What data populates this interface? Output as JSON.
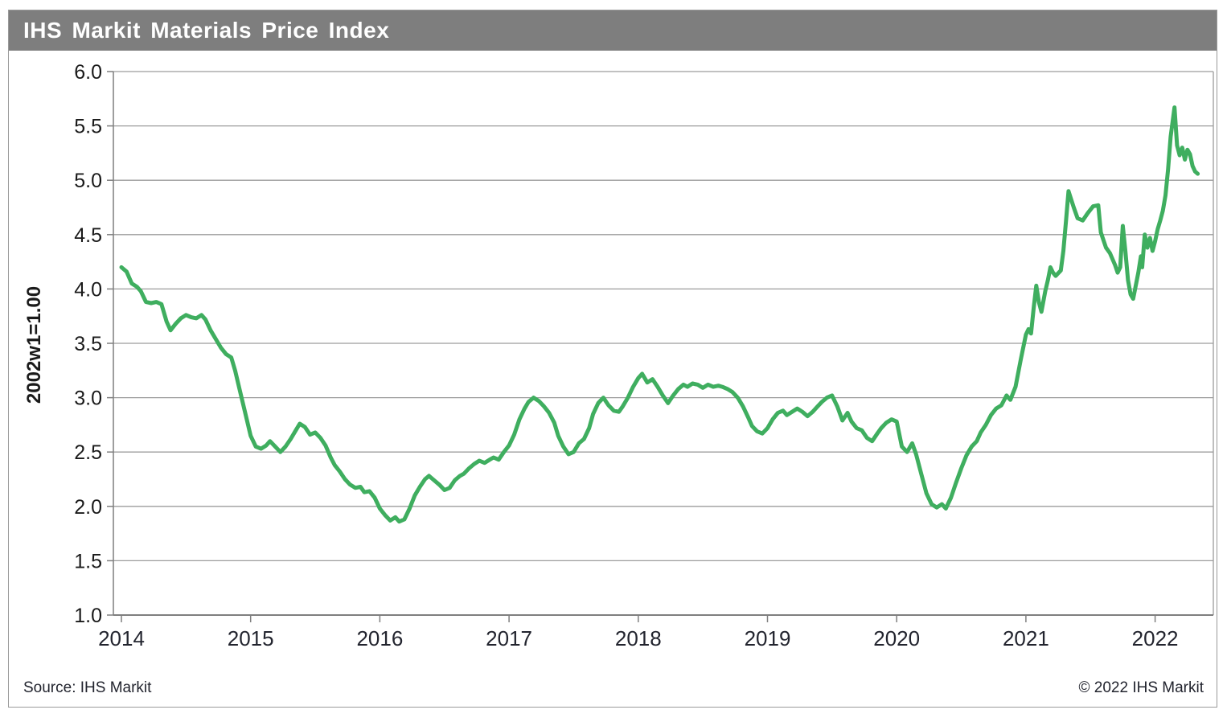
{
  "header": {
    "title": "IHS Markit Materials Price Index",
    "bar_color": "#7e7e7e",
    "title_color": "#ffffff"
  },
  "footer": {
    "source": "Source:  IHS Markit",
    "copyright": "© 2022  IHS Markit"
  },
  "chart_data": {
    "type": "line",
    "title": "IHS Markit Materials Price Index",
    "xlabel": "",
    "ylabel": "2002w1=1.00",
    "legend": [],
    "grid": "horizontal, every 0.5 units",
    "xlim": [
      2014,
      2022.45
    ],
    "ylim": [
      1.0,
      6.0
    ],
    "xticks": [
      "2014",
      "2015",
      "2016",
      "2017",
      "2018",
      "2019",
      "2020",
      "2021",
      "2022"
    ],
    "yticks": [
      "6.0",
      "5.5",
      "5.0",
      "4.5",
      "4.0",
      "3.5",
      "3.0",
      "2.5",
      "2.0",
      "1.5",
      "1.0"
    ],
    "ytick_values": [
      6.0,
      5.5,
      5.0,
      4.5,
      4.0,
      3.5,
      3.0,
      2.5,
      2.0,
      1.5,
      1.0
    ],
    "xtick_values": [
      2014,
      2015,
      2016,
      2017,
      2018,
      2019,
      2020,
      2021,
      2022
    ],
    "line_color": "#3fae5f",
    "grid_color": "#9c9c9c",
    "axis_color": "#7f7f7f",
    "series_name": "IHS Markit Materials Price Index",
    "points": [
      [
        2014.0,
        4.2
      ],
      [
        2014.04,
        4.16
      ],
      [
        2014.08,
        4.05
      ],
      [
        2014.12,
        4.02
      ],
      [
        2014.15,
        3.98
      ],
      [
        2014.19,
        3.88
      ],
      [
        2014.23,
        3.87
      ],
      [
        2014.27,
        3.88
      ],
      [
        2014.31,
        3.86
      ],
      [
        2014.35,
        3.7
      ],
      [
        2014.38,
        3.62
      ],
      [
        2014.42,
        3.68
      ],
      [
        2014.46,
        3.73
      ],
      [
        2014.5,
        3.76
      ],
      [
        2014.54,
        3.74
      ],
      [
        2014.58,
        3.73
      ],
      [
        2014.62,
        3.76
      ],
      [
        2014.65,
        3.72
      ],
      [
        2014.69,
        3.62
      ],
      [
        2014.73,
        3.54
      ],
      [
        2014.77,
        3.46
      ],
      [
        2014.81,
        3.4
      ],
      [
        2014.85,
        3.37
      ],
      [
        2014.88,
        3.25
      ],
      [
        2014.92,
        3.05
      ],
      [
        2014.96,
        2.85
      ],
      [
        2015.0,
        2.65
      ],
      [
        2015.04,
        2.55
      ],
      [
        2015.08,
        2.53
      ],
      [
        2015.12,
        2.56
      ],
      [
        2015.15,
        2.6
      ],
      [
        2015.19,
        2.55
      ],
      [
        2015.23,
        2.5
      ],
      [
        2015.27,
        2.55
      ],
      [
        2015.31,
        2.62
      ],
      [
        2015.35,
        2.7
      ],
      [
        2015.38,
        2.76
      ],
      [
        2015.42,
        2.73
      ],
      [
        2015.46,
        2.66
      ],
      [
        2015.5,
        2.68
      ],
      [
        2015.54,
        2.63
      ],
      [
        2015.58,
        2.56
      ],
      [
        2015.62,
        2.45
      ],
      [
        2015.65,
        2.38
      ],
      [
        2015.69,
        2.32
      ],
      [
        2015.73,
        2.25
      ],
      [
        2015.77,
        2.2
      ],
      [
        2015.81,
        2.17
      ],
      [
        2015.85,
        2.18
      ],
      [
        2015.88,
        2.13
      ],
      [
        2015.92,
        2.14
      ],
      [
        2015.96,
        2.08
      ],
      [
        2016.0,
        1.98
      ],
      [
        2016.04,
        1.92
      ],
      [
        2016.08,
        1.87
      ],
      [
        2016.12,
        1.9
      ],
      [
        2016.15,
        1.86
      ],
      [
        2016.19,
        1.88
      ],
      [
        2016.23,
        1.98
      ],
      [
        2016.27,
        2.1
      ],
      [
        2016.31,
        2.18
      ],
      [
        2016.35,
        2.25
      ],
      [
        2016.38,
        2.28
      ],
      [
        2016.42,
        2.24
      ],
      [
        2016.46,
        2.2
      ],
      [
        2016.5,
        2.15
      ],
      [
        2016.54,
        2.17
      ],
      [
        2016.58,
        2.24
      ],
      [
        2016.62,
        2.28
      ],
      [
        2016.65,
        2.3
      ],
      [
        2016.69,
        2.35
      ],
      [
        2016.73,
        2.39
      ],
      [
        2016.77,
        2.42
      ],
      [
        2016.81,
        2.4
      ],
      [
        2016.85,
        2.43
      ],
      [
        2016.88,
        2.45
      ],
      [
        2016.92,
        2.43
      ],
      [
        2016.96,
        2.5
      ],
      [
        2017.0,
        2.56
      ],
      [
        2017.04,
        2.66
      ],
      [
        2017.08,
        2.8
      ],
      [
        2017.12,
        2.9
      ],
      [
        2017.15,
        2.96
      ],
      [
        2017.19,
        3.0
      ],
      [
        2017.23,
        2.97
      ],
      [
        2017.27,
        2.92
      ],
      [
        2017.31,
        2.86
      ],
      [
        2017.35,
        2.77
      ],
      [
        2017.38,
        2.65
      ],
      [
        2017.42,
        2.55
      ],
      [
        2017.46,
        2.48
      ],
      [
        2017.5,
        2.5
      ],
      [
        2017.54,
        2.58
      ],
      [
        2017.58,
        2.62
      ],
      [
        2017.62,
        2.72
      ],
      [
        2017.65,
        2.85
      ],
      [
        2017.69,
        2.95
      ],
      [
        2017.73,
        3.0
      ],
      [
        2017.77,
        2.93
      ],
      [
        2017.81,
        2.88
      ],
      [
        2017.85,
        2.87
      ],
      [
        2017.88,
        2.92
      ],
      [
        2017.92,
        3.0
      ],
      [
        2017.96,
        3.1
      ],
      [
        2018.0,
        3.18
      ],
      [
        2018.03,
        3.22
      ],
      [
        2018.07,
        3.14
      ],
      [
        2018.11,
        3.17
      ],
      [
        2018.15,
        3.1
      ],
      [
        2018.19,
        3.02
      ],
      [
        2018.23,
        2.95
      ],
      [
        2018.27,
        3.02
      ],
      [
        2018.31,
        3.08
      ],
      [
        2018.35,
        3.12
      ],
      [
        2018.38,
        3.1
      ],
      [
        2018.42,
        3.13
      ],
      [
        2018.46,
        3.12
      ],
      [
        2018.5,
        3.09
      ],
      [
        2018.54,
        3.12
      ],
      [
        2018.58,
        3.1
      ],
      [
        2018.62,
        3.11
      ],
      [
        2018.65,
        3.1
      ],
      [
        2018.69,
        3.08
      ],
      [
        2018.73,
        3.05
      ],
      [
        2018.77,
        3.0
      ],
      [
        2018.81,
        2.92
      ],
      [
        2018.85,
        2.82
      ],
      [
        2018.88,
        2.74
      ],
      [
        2018.92,
        2.69
      ],
      [
        2018.96,
        2.67
      ],
      [
        2019.0,
        2.72
      ],
      [
        2019.04,
        2.8
      ],
      [
        2019.08,
        2.86
      ],
      [
        2019.12,
        2.88
      ],
      [
        2019.15,
        2.84
      ],
      [
        2019.19,
        2.87
      ],
      [
        2019.23,
        2.9
      ],
      [
        2019.27,
        2.87
      ],
      [
        2019.31,
        2.83
      ],
      [
        2019.35,
        2.87
      ],
      [
        2019.38,
        2.91
      ],
      [
        2019.42,
        2.96
      ],
      [
        2019.46,
        3.0
      ],
      [
        2019.5,
        3.02
      ],
      [
        2019.54,
        2.92
      ],
      [
        2019.58,
        2.79
      ],
      [
        2019.62,
        2.86
      ],
      [
        2019.65,
        2.78
      ],
      [
        2019.69,
        2.72
      ],
      [
        2019.73,
        2.7
      ],
      [
        2019.77,
        2.63
      ],
      [
        2019.81,
        2.6
      ],
      [
        2019.85,
        2.67
      ],
      [
        2019.88,
        2.72
      ],
      [
        2019.92,
        2.77
      ],
      [
        2019.96,
        2.8
      ],
      [
        2020.0,
        2.78
      ],
      [
        2020.04,
        2.55
      ],
      [
        2020.08,
        2.5
      ],
      [
        2020.12,
        2.58
      ],
      [
        2020.15,
        2.48
      ],
      [
        2020.19,
        2.3
      ],
      [
        2020.23,
        2.12
      ],
      [
        2020.27,
        2.02
      ],
      [
        2020.31,
        1.99
      ],
      [
        2020.35,
        2.02
      ],
      [
        2020.38,
        1.98
      ],
      [
        2020.42,
        2.08
      ],
      [
        2020.46,
        2.22
      ],
      [
        2020.5,
        2.35
      ],
      [
        2020.54,
        2.47
      ],
      [
        2020.58,
        2.55
      ],
      [
        2020.62,
        2.6
      ],
      [
        2020.65,
        2.68
      ],
      [
        2020.69,
        2.75
      ],
      [
        2020.73,
        2.84
      ],
      [
        2020.77,
        2.9
      ],
      [
        2020.81,
        2.93
      ],
      [
        2020.85,
        3.02
      ],
      [
        2020.88,
        2.98
      ],
      [
        2020.92,
        3.1
      ],
      [
        2020.96,
        3.35
      ],
      [
        2021.0,
        3.58
      ],
      [
        2021.02,
        3.63
      ],
      [
        2021.04,
        3.59
      ],
      [
        2021.06,
        3.82
      ],
      [
        2021.08,
        4.03
      ],
      [
        2021.1,
        3.88
      ],
      [
        2021.12,
        3.79
      ],
      [
        2021.15,
        3.98
      ],
      [
        2021.17,
        4.08
      ],
      [
        2021.19,
        4.2
      ],
      [
        2021.21,
        4.15
      ],
      [
        2021.23,
        4.12
      ],
      [
        2021.27,
        4.17
      ],
      [
        2021.29,
        4.35
      ],
      [
        2021.31,
        4.62
      ],
      [
        2021.33,
        4.9
      ],
      [
        2021.37,
        4.75
      ],
      [
        2021.4,
        4.65
      ],
      [
        2021.44,
        4.63
      ],
      [
        2021.48,
        4.7
      ],
      [
        2021.52,
        4.76
      ],
      [
        2021.56,
        4.77
      ],
      [
        2021.58,
        4.52
      ],
      [
        2021.62,
        4.38
      ],
      [
        2021.65,
        4.33
      ],
      [
        2021.69,
        4.22
      ],
      [
        2021.71,
        4.15
      ],
      [
        2021.73,
        4.2
      ],
      [
        2021.75,
        4.58
      ],
      [
        2021.77,
        4.35
      ],
      [
        2021.79,
        4.08
      ],
      [
        2021.81,
        3.95
      ],
      [
        2021.83,
        3.91
      ],
      [
        2021.87,
        4.15
      ],
      [
        2021.89,
        4.3
      ],
      [
        2021.9,
        4.2
      ],
      [
        2021.92,
        4.5
      ],
      [
        2021.94,
        4.38
      ],
      [
        2021.96,
        4.47
      ],
      [
        2021.98,
        4.35
      ],
      [
        2022.0,
        4.44
      ],
      [
        2022.02,
        4.55
      ],
      [
        2022.04,
        4.63
      ],
      [
        2022.06,
        4.72
      ],
      [
        2022.08,
        4.86
      ],
      [
        2022.1,
        5.1
      ],
      [
        2022.12,
        5.4
      ],
      [
        2022.15,
        5.67
      ],
      [
        2022.17,
        5.32
      ],
      [
        2022.19,
        5.23
      ],
      [
        2022.21,
        5.3
      ],
      [
        2022.23,
        5.19
      ],
      [
        2022.25,
        5.28
      ],
      [
        2022.27,
        5.24
      ],
      [
        2022.29,
        5.13
      ],
      [
        2022.31,
        5.08
      ],
      [
        2022.33,
        5.06
      ]
    ]
  }
}
